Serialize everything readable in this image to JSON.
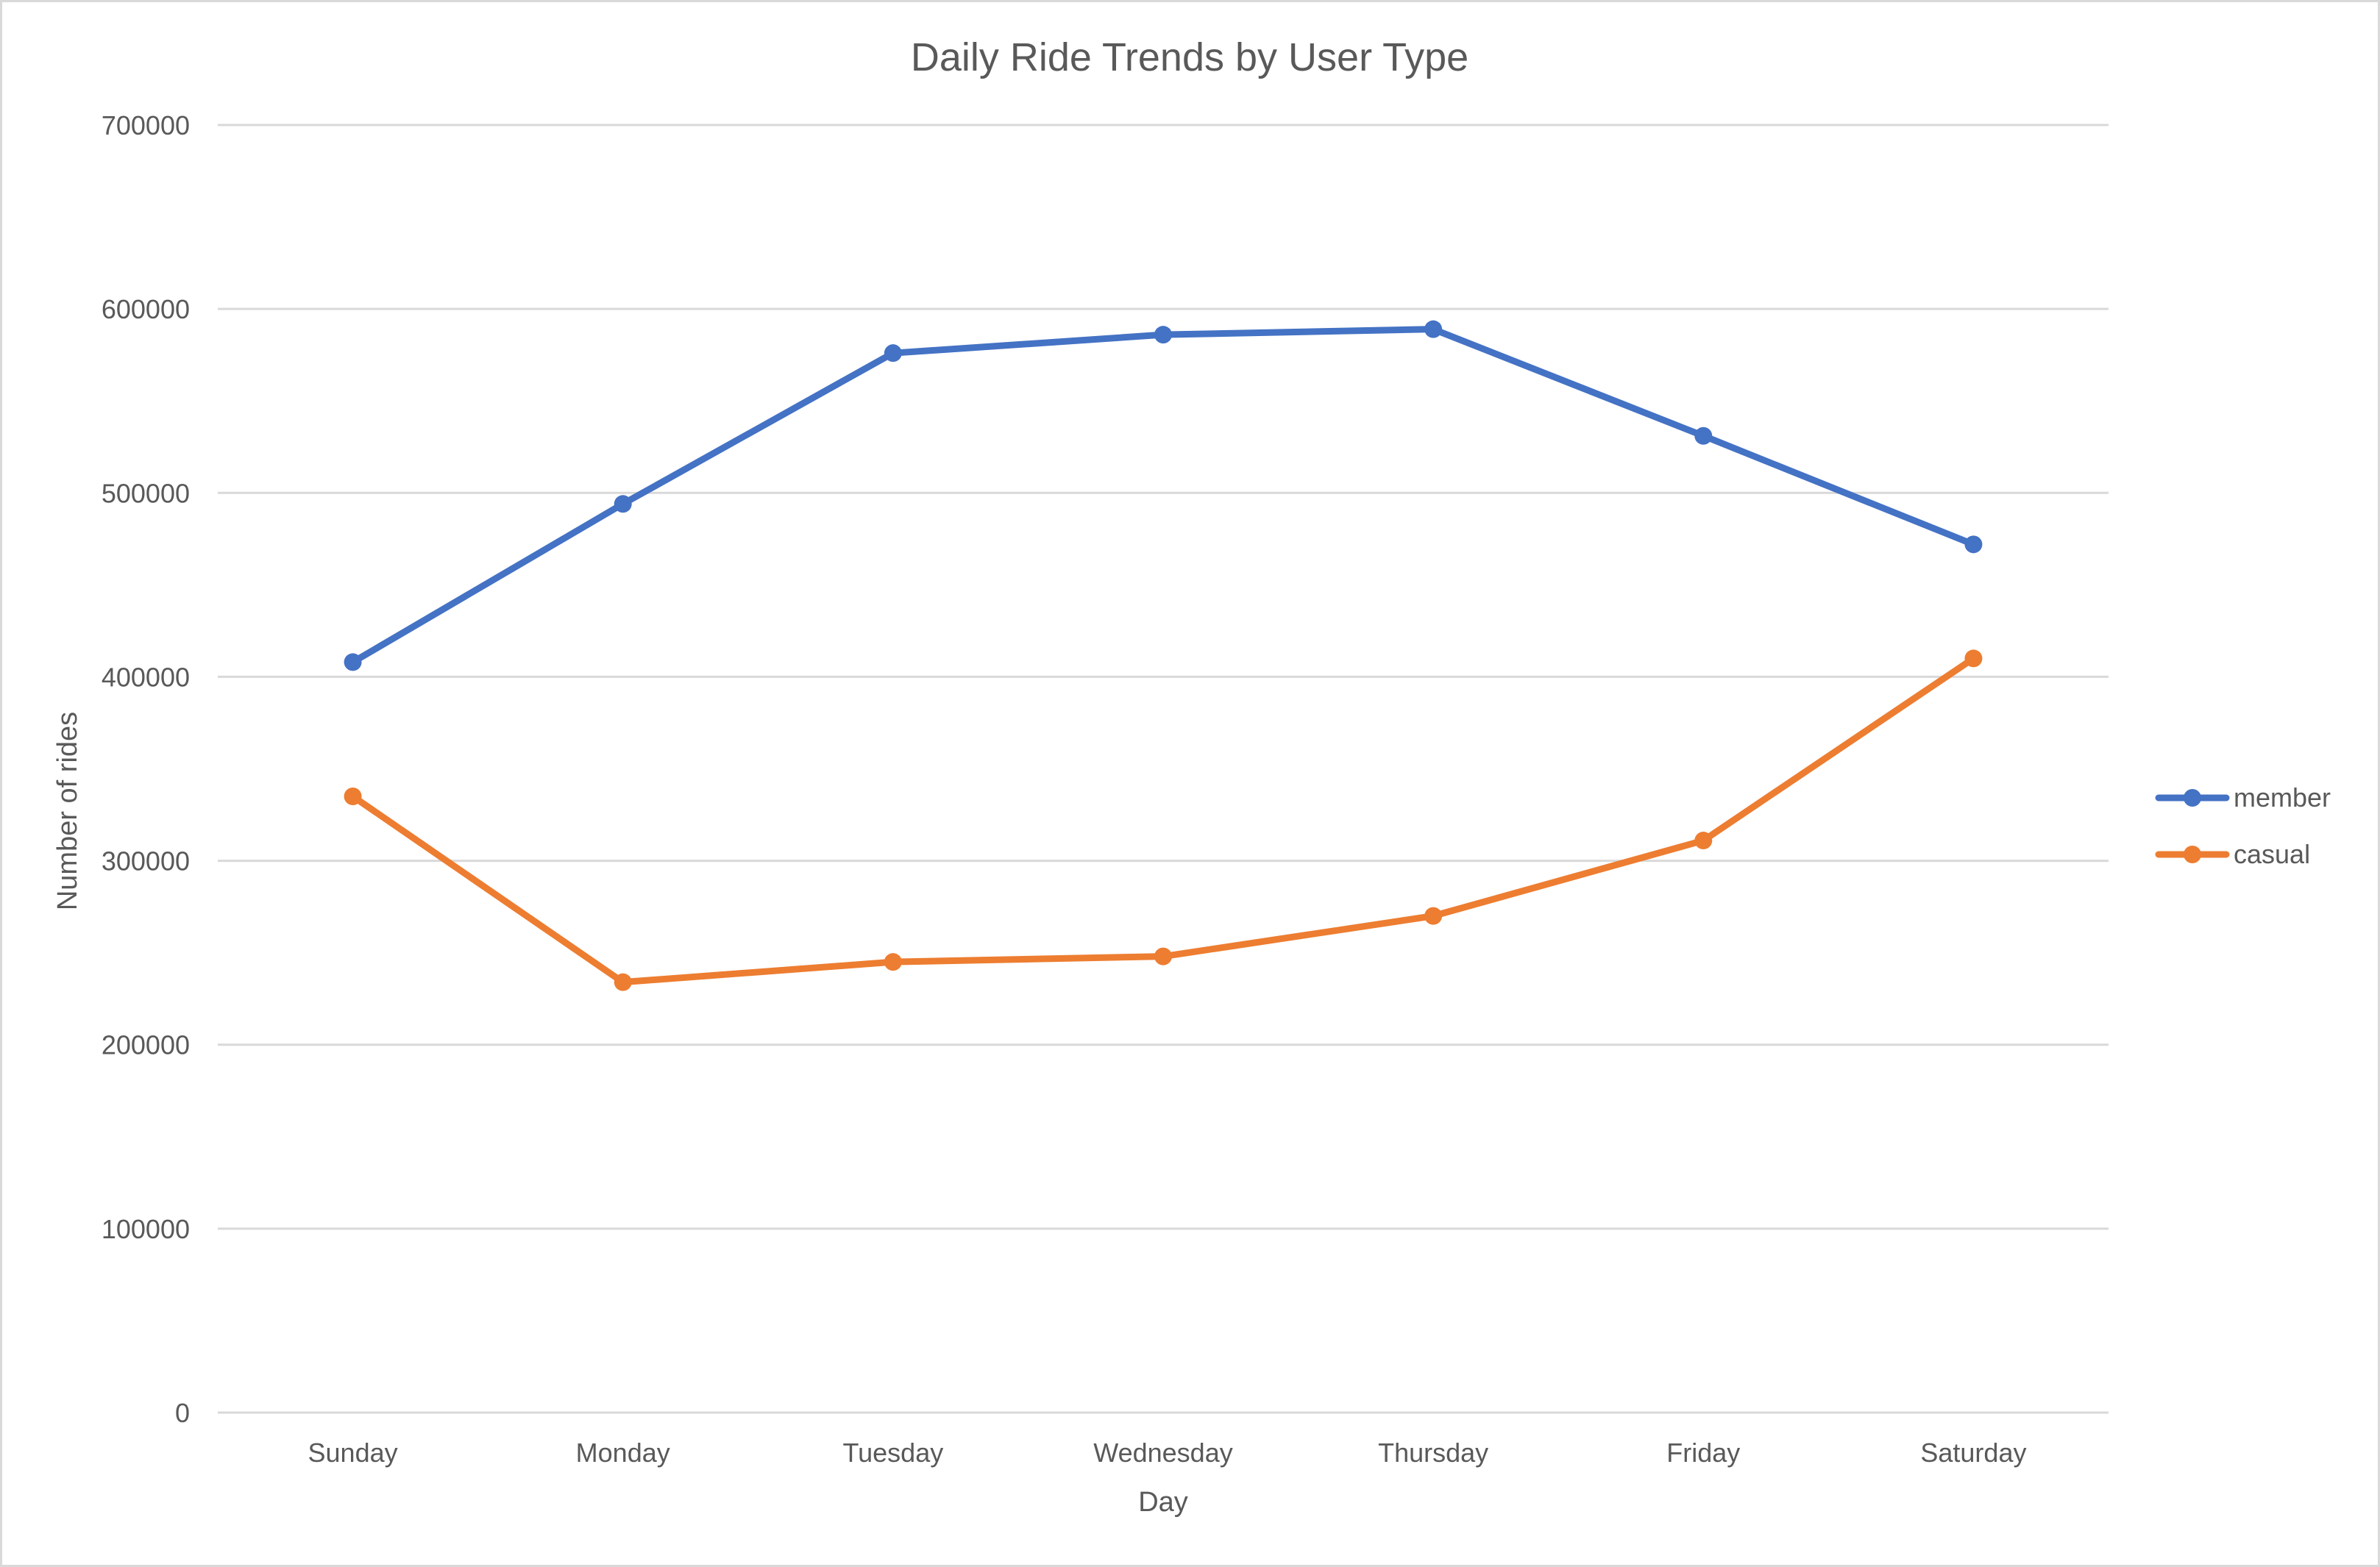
{
  "chart_data": {
    "type": "line",
    "title": "Daily Ride Trends by User Type",
    "xlabel": "Day",
    "ylabel": "Number of rides",
    "categories": [
      "Sunday",
      "Monday",
      "Tuesday",
      "Wednesday",
      "Thursday",
      "Friday",
      "Saturday"
    ],
    "series": [
      {
        "name": "member",
        "color": "#4472c4",
        "values": [
          408000,
          494000,
          576000,
          586000,
          589000,
          531000,
          472000
        ]
      },
      {
        "name": "casual",
        "color": "#ed7d31",
        "values": [
          335000,
          234000,
          245000,
          248000,
          270000,
          311000,
          410000
        ]
      }
    ],
    "ylim": [
      0,
      700000
    ],
    "yticks": [
      "0",
      "100000",
      "200000",
      "300000",
      "400000",
      "500000",
      "600000",
      "700000"
    ],
    "grid": true,
    "legend_position": "right",
    "gridline_color": "#d9d9d9"
  }
}
